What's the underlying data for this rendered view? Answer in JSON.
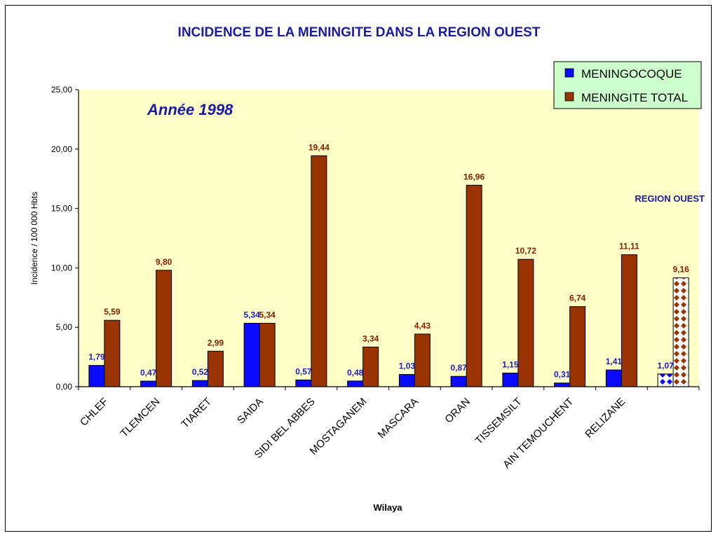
{
  "chart_data": {
    "type": "bar",
    "title": "INCIDENCE DE LA MENINGITE DANS LA REGION OUEST",
    "subtitle": "Année 1998",
    "xlabel": "Wilaya",
    "ylabel": "Incidence / 100 000 Hbts",
    "ylim": [
      0,
      25
    ],
    "yticks": [
      "0,00",
      "5,00",
      "10,00",
      "15,00",
      "20,00",
      "25,00"
    ],
    "categories": [
      "CHLEF",
      "TLEMCEN",
      "TIARET",
      "SAIDA",
      "SIDI BEL ABBES",
      "MOSTAGANEM",
      "MASCARA",
      "ORAN",
      "TISSEMSILT",
      "AIN TEMOUCHENT",
      "RELIZANE",
      ""
    ],
    "series": [
      {
        "name": "MENINGOCOQUE",
        "color": "#0a0aff",
        "values": [
          1.79,
          0.47,
          0.52,
          5.34,
          0.57,
          0.48,
          1.03,
          0.87,
          1.15,
          0.31,
          1.41,
          1.07
        ],
        "labels": [
          "1,79",
          "0,47",
          "0,52",
          "5,34",
          "0,57",
          "0,48",
          "1,03",
          "0,87",
          "1,15",
          "0,31",
          "1,41",
          "1,07"
        ]
      },
      {
        "name": "MENINGITE TOTAL",
        "color": "#993300",
        "values": [
          5.59,
          9.8,
          2.99,
          5.34,
          19.44,
          3.34,
          4.43,
          16.96,
          10.72,
          6.74,
          11.11,
          9.16
        ],
        "labels": [
          "5,59",
          "9,80",
          "2,99",
          "5,34",
          "19,44",
          "3,34",
          "4,43",
          "16,96",
          "10,72",
          "6,74",
          "11,11",
          "9,16"
        ]
      }
    ],
    "highlight_category_index": 11,
    "annotation": "REGION OUEST",
    "plot_background": "#ffffc8",
    "legend_background": "#ccffcc",
    "legend_position": "top-right",
    "grid": false
  }
}
